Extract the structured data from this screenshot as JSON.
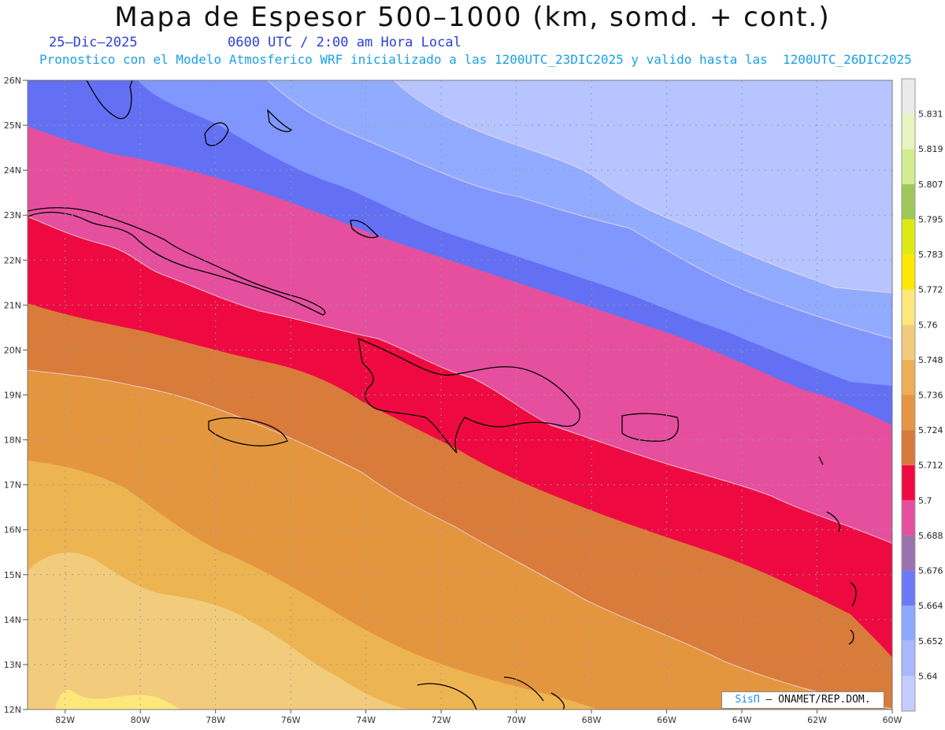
{
  "header": {
    "title": "Mapa de Espesor 500–1000 (km, somd. + cont.)",
    "date": "25–Dic–2025",
    "time": "0600 UTC / 2:00 am Hora Local",
    "model_line": "Pronostico con el Modelo Atmosferico WRF inicializado a las 1200UTC_23DIC2025 y valido hasta las  1200UTC_26DIC2025"
  },
  "map": {
    "lat_labels": [
      "26N",
      "25N",
      "24N",
      "23N",
      "22N",
      "21N",
      "20N",
      "19N",
      "18N",
      "17N",
      "16N",
      "15N",
      "14N",
      "13N",
      "12N"
    ],
    "lon_labels": [
      "82W",
      "80W",
      "78W",
      "76W",
      "74W",
      "72W",
      "70W",
      "68W",
      "66W",
      "64W",
      "62W",
      "60W"
    ],
    "lat_range": [
      12,
      26
    ],
    "lon_range": [
      -83,
      -60
    ],
    "grid": true
  },
  "legend": {
    "levels": [
      "5.64",
      "5.652",
      "5.664",
      "5.676",
      "5.688",
      "5.7",
      "5.712",
      "5.724",
      "5.736",
      "5.748",
      "5.76",
      "5.772",
      "5.783",
      "5.795",
      "5.807",
      "5.819",
      "5.831"
    ],
    "colors": [
      "#c3ccff",
      "#a9b8ff",
      "#8ea8ff",
      "#6b79f7",
      "#9a72ad",
      "#e54f9e",
      "#ee0a40",
      "#d87a3a",
      "#e49642",
      "#eeae55",
      "#f2ca7c",
      "#fde77a",
      "#fde704",
      "#dcea14",
      "#9fc75a",
      "#d2ec8e",
      "#e9f4c1",
      "#ebebeb"
    ]
  },
  "credit": {
    "brand": "SisΠ",
    "text": "– ONAMET/REP.DOM."
  },
  "colors": {
    "band_lightest": "#b6c4ff",
    "band_light": "#91abff",
    "band_mid": "#8097ff",
    "band_blue": "#6470f4",
    "band_purple": "#9a72ad",
    "band_pink": "#e54f9e",
    "band_red": "#ee0a40",
    "band_orange_dark": "#d97b3a",
    "band_orange": "#e4963f",
    "band_tan": "#edb452",
    "band_sand": "#f2cc7c",
    "band_yellow": "#fde77a"
  }
}
